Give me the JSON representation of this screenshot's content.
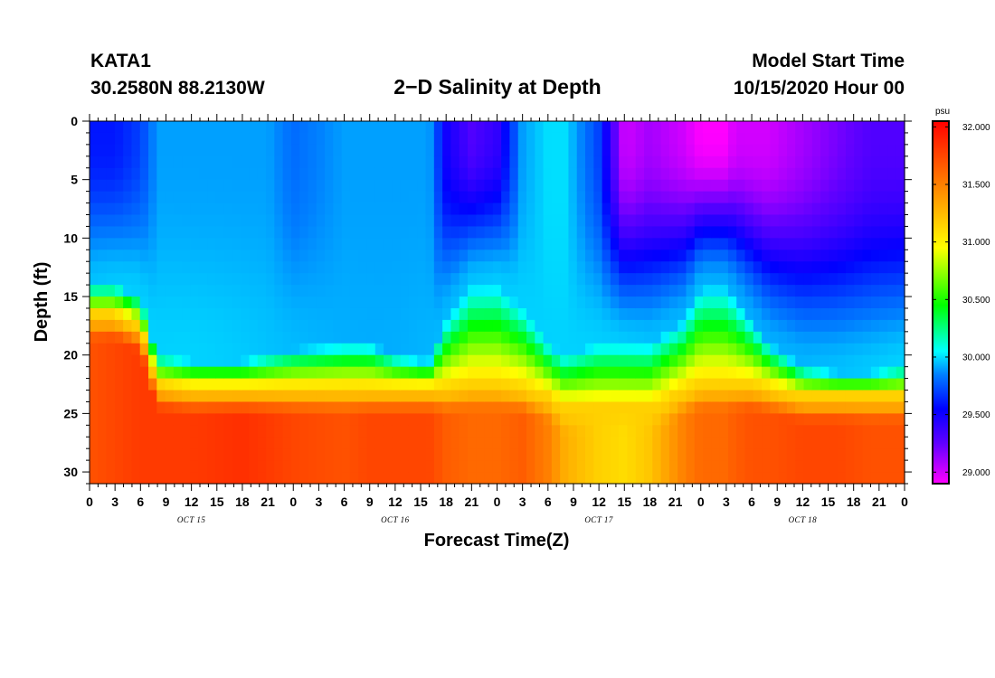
{
  "header": {
    "station_id": "KATA1",
    "station_location": "30.2580N 88.2130W",
    "title": "2−D Salinity at Depth",
    "start_label": "Model Start Time",
    "start_time": "10/15/2020 Hour 00"
  },
  "chart_data": {
    "type": "heatmap",
    "title": "2−D Salinity at Depth",
    "xlabel": "Forecast Time(Z)",
    "ylabel": "Depth (ft)",
    "x_tick_labels": [
      "0",
      "3",
      "6",
      "9",
      "12",
      "15",
      "18",
      "21",
      "0",
      "3",
      "6",
      "9",
      "12",
      "15",
      "18",
      "21",
      "0",
      "3",
      "6",
      "9",
      "12",
      "15",
      "18",
      "21",
      "0",
      "3",
      "6",
      "9",
      "12",
      "15",
      "18",
      "21",
      "0"
    ],
    "x_date_labels": [
      "OCT 15",
      "OCT 16",
      "OCT 17",
      "OCT 18"
    ],
    "xlim_hours": [
      0,
      96
    ],
    "y_ticks": [
      0,
      5,
      10,
      15,
      20,
      25,
      30
    ],
    "ylim": [
      0,
      31
    ],
    "y_inverted": true,
    "colorbar": {
      "unit": "psu",
      "min": 28.9,
      "max": 32.05,
      "ticks": [
        "32.000",
        "31.500",
        "31.000",
        "30.500",
        "30.000",
        "29.500",
        "29.000"
      ],
      "palette": [
        "#ff00ff",
        "#6000ff",
        "#0000ff",
        "#0080ff",
        "#00ffff",
        "#00ff00",
        "#ffff00",
        "#ff8000",
        "#ff0000"
      ]
    },
    "key_times_hours": [
      0,
      3,
      6,
      8,
      12,
      18,
      21,
      24,
      30,
      33,
      36,
      40,
      42,
      45,
      48,
      51,
      54,
      56,
      60,
      63,
      66,
      70,
      72,
      75,
      76,
      78,
      80,
      84,
      88,
      92,
      96
    ],
    "layers": {
      "surface_salinity": [
        29.6,
        29.6,
        29.7,
        29.9,
        29.9,
        29.9,
        29.9,
        29.8,
        29.9,
        29.9,
        29.9,
        29.9,
        29.5,
        29.3,
        29.4,
        29.9,
        30.0,
        30.0,
        29.7,
        29.0,
        29.1,
        29.0,
        28.9,
        28.9,
        29.0,
        29.0,
        29.0,
        29.1,
        29.2,
        29.3,
        29.3
      ],
      "halocline_top_ft": [
        14,
        14,
        15,
        20,
        20.5,
        20.5,
        20,
        19.5,
        19,
        19,
        20,
        20.5,
        17,
        14,
        14,
        16,
        19,
        20,
        19,
        19,
        19,
        17,
        14,
        14,
        15,
        17,
        19,
        21,
        21.5,
        21.5,
        21
      ],
      "halocline_bottom_ft": [
        16.5,
        16.5,
        17.5,
        22.5,
        22.8,
        22.8,
        22.8,
        22.8,
        22.8,
        22.8,
        22.8,
        22.8,
        22.8,
        22.5,
        22.5,
        22.8,
        23.5,
        24.5,
        24.5,
        24.5,
        24.5,
        23,
        22.5,
        22.5,
        22.5,
        22.5,
        22.8,
        23.5,
        23.5,
        23.5,
        23.5
      ],
      "bottom_salinity": [
        31.7,
        31.75,
        31.8,
        31.8,
        31.8,
        31.85,
        31.8,
        31.75,
        31.7,
        31.75,
        31.75,
        31.75,
        31.65,
        31.6,
        31.6,
        31.65,
        31.5,
        31.3,
        31.15,
        31.1,
        31.2,
        31.5,
        31.6,
        31.6,
        31.65,
        31.7,
        31.7,
        31.75,
        31.75,
        31.7,
        31.7
      ]
    }
  }
}
